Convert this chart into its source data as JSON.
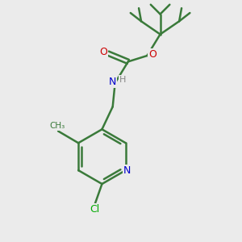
{
  "bg_color": "#ebebeb",
  "bond_color": "#3a7a3a",
  "atom_colors": {
    "N": "#0000cc",
    "O": "#cc0000",
    "Cl": "#00aa00",
    "H": "#888888",
    "C": "#3a7a3a"
  }
}
